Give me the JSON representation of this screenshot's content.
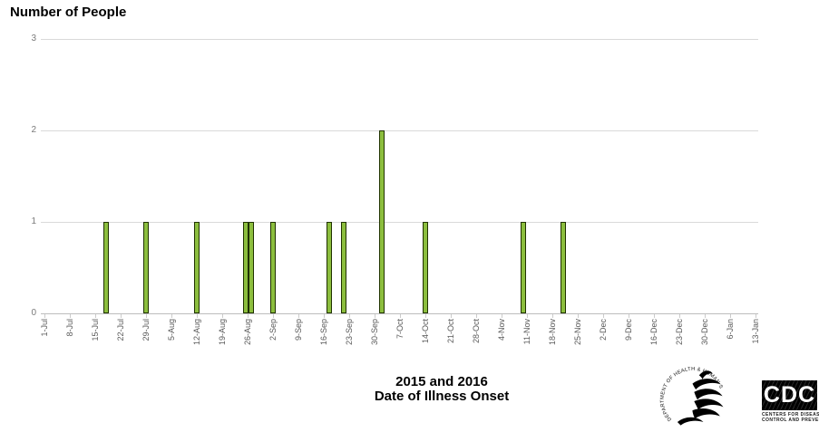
{
  "chart_data": {
    "type": "bar",
    "title": "Number of People",
    "xlabel_line1": "2015 and 2016",
    "xlabel_line2": "Date of Illness Onset",
    "ylabel": "Number of People",
    "ylim": [
      0,
      3
    ],
    "yticks": [
      0,
      1,
      2,
      3
    ],
    "grid": true,
    "legend": "none",
    "x_tick_labels": [
      "1-Jul",
      "8-Jul",
      "15-Jul",
      "22-Jul",
      "29-Jul",
      "5-Aug",
      "12-Aug",
      "19-Aug",
      "26-Aug",
      "2-Sep",
      "9-Sep",
      "16-Sep",
      "23-Sep",
      "30-Sep",
      "7-Oct",
      "14-Oct",
      "21-Oct",
      "28-Oct",
      "4-Nov",
      "11-Nov",
      "18-Nov",
      "25-Nov",
      "2-Dec",
      "9-Dec",
      "16-Dec",
      "23-Dec",
      "30-Dec",
      "6-Jan",
      "13-Jan"
    ],
    "bars": [
      {
        "date": "18-Jul",
        "day_offset": 17,
        "count": 1
      },
      {
        "date": "29-Jul",
        "day_offset": 28,
        "count": 1
      },
      {
        "date": "12-Aug",
        "day_offset": 42,
        "count": 1
      },
      {
        "date": "26-Aug",
        "day_offset": 55.5,
        "count": 1
      },
      {
        "date": "27-Aug",
        "day_offset": 57,
        "count": 1
      },
      {
        "date": "2-Sep",
        "day_offset": 63,
        "count": 1
      },
      {
        "date": "18-Sep",
        "day_offset": 78.5,
        "count": 1
      },
      {
        "date": "22-Sep",
        "day_offset": 82.5,
        "count": 1
      },
      {
        "date": "2-Oct",
        "day_offset": 93,
        "count": 2
      },
      {
        "date": "14-Oct",
        "day_offset": 105,
        "count": 1
      },
      {
        "date": "10-Nov",
        "day_offset": 132,
        "count": 1
      },
      {
        "date": "21-Nov",
        "day_offset": 143,
        "count": 1
      }
    ],
    "colors": {
      "bar_fill": "#8cbe3e",
      "bar_stroke": "#203300",
      "gridline": "#d9d9d9",
      "axis_line": "#bdbdbd",
      "tick_label": "#595959"
    }
  },
  "footer": {
    "hhs_logo_text": "DEPARTMENT OF HEALTH & HUMAN SERVICES • USA",
    "cdc_logo": {
      "abbr": "CDC",
      "caption_line1": "Centers for Disease",
      "caption_line2": "Control and Prevention"
    }
  }
}
